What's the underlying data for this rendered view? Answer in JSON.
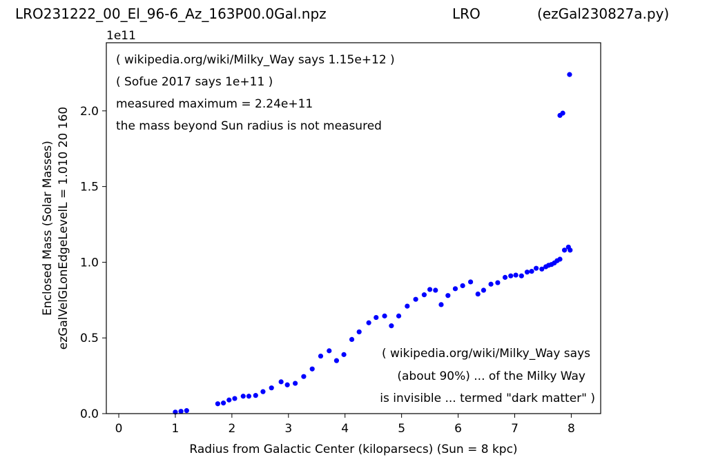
{
  "header": {
    "left": "LRO231222_00_El_96-6_Az_163P00.0Gal.npz",
    "center": "LRO",
    "right": "(ezGal230827a.py)"
  },
  "chart_data": {
    "type": "scatter",
    "title": "",
    "xlabel": "Radius from Galactic Center (kiloparsecs)  (Sun = 8 kpc)",
    "ylabel_lines": [
      "Enclosed Mass (Solar Masses)",
      "ezGalVelGLonEdgeLevelL = 1.010  20  160"
    ],
    "y_scale_note": "1e11",
    "xlim": [
      -0.22,
      8.52
    ],
    "ylim": [
      0,
      2.45
    ],
    "xticks": [
      0,
      1,
      2,
      3,
      4,
      5,
      6,
      7,
      8
    ],
    "xtick_labels": [
      "0",
      "1",
      "2",
      "3",
      "4",
      "5",
      "6",
      "7",
      "8"
    ],
    "yticks": [
      0.0,
      0.5,
      1.0,
      1.5,
      2.0
    ],
    "ytick_labels": [
      "0.0",
      "0.5",
      "1.0",
      "1.5",
      "2.0"
    ],
    "grid": false,
    "color": "#0000ff",
    "annotations_top": [
      "( wikipedia.org/wiki/Milky_Way says 1.15e+12 )",
      "( Sofue 2017 says 1e+11 )",
      "measured maximum = 2.24e+11",
      "the mass beyond Sun radius is not measured"
    ],
    "annotations_bottom": [
      "( wikipedia.org/wiki/Milky_Way says",
      "(about 90%) ... of the Milky Way",
      "is invisible ... termed \"dark matter\" )"
    ],
    "x": [
      1.0,
      1.1,
      1.2,
      1.75,
      1.85,
      1.95,
      2.05,
      2.2,
      2.3,
      2.42,
      2.55,
      2.7,
      2.87,
      2.98,
      3.12,
      3.27,
      3.42,
      3.57,
      3.72,
      3.85,
      3.98,
      4.12,
      4.25,
      4.42,
      4.55,
      4.7,
      4.82,
      4.95,
      5.1,
      5.25,
      5.4,
      5.5,
      5.6,
      5.7,
      5.82,
      5.95,
      6.08,
      6.22,
      6.35,
      6.45,
      6.58,
      6.7,
      6.83,
      6.93,
      7.02,
      7.12,
      7.22,
      7.3,
      7.38,
      7.48,
      7.55,
      7.6,
      7.65,
      7.7,
      7.75,
      7.8,
      7.88,
      7.95,
      7.98,
      7.8,
      7.85,
      7.97
    ],
    "y": [
      0.01,
      0.015,
      0.02,
      0.065,
      0.07,
      0.09,
      0.1,
      0.115,
      0.115,
      0.12,
      0.145,
      0.17,
      0.21,
      0.19,
      0.2,
      0.245,
      0.295,
      0.38,
      0.415,
      0.35,
      0.39,
      0.49,
      0.54,
      0.6,
      0.635,
      0.645,
      0.58,
      0.645,
      0.71,
      0.755,
      0.785,
      0.82,
      0.815,
      0.72,
      0.78,
      0.825,
      0.845,
      0.87,
      0.79,
      0.815,
      0.855,
      0.865,
      0.9,
      0.91,
      0.915,
      0.91,
      0.935,
      0.94,
      0.96,
      0.955,
      0.97,
      0.98,
      0.985,
      0.995,
      1.01,
      1.02,
      1.08,
      1.1,
      1.08,
      1.97,
      1.985,
      2.24
    ]
  }
}
